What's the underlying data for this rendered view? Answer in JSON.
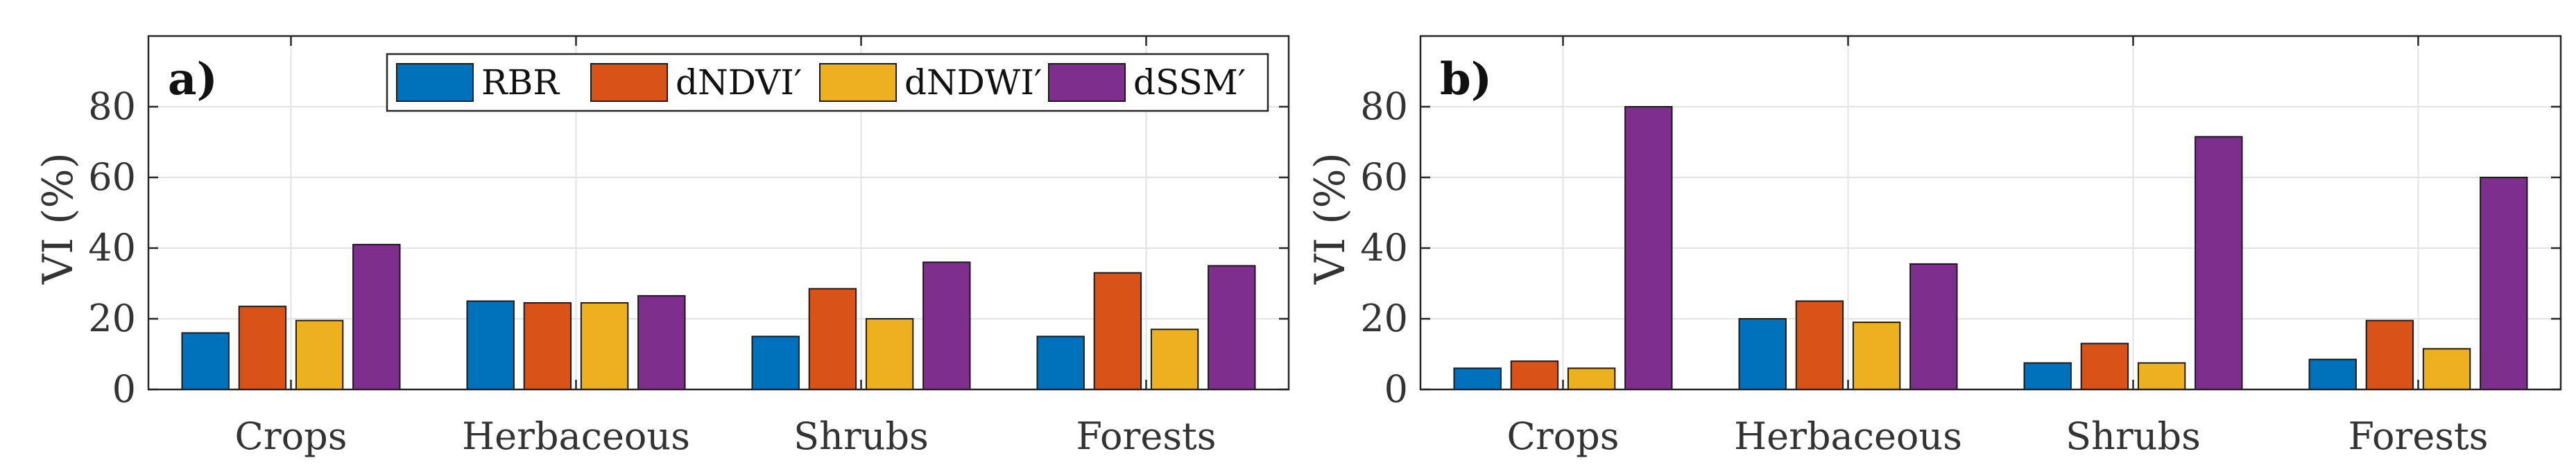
{
  "chart_data": [
    {
      "type": "bar",
      "panel_label": "a)",
      "ylabel": "VI (%)",
      "ylim": [
        0,
        100
      ],
      "yticks": [
        "0",
        "20",
        "40",
        "60",
        "80"
      ],
      "categories": [
        "Crops",
        "Herbaceous",
        "Shrubs",
        "Forests"
      ],
      "grid": true,
      "legend_position": "top-right",
      "series": [
        {
          "name": "RBR",
          "color": "#0072BD",
          "values": [
            16,
            25,
            15,
            15
          ]
        },
        {
          "name": "dNDVI′",
          "color": "#D95319",
          "values": [
            23.5,
            24.5,
            28.5,
            33
          ]
        },
        {
          "name": "dNDWI′",
          "color": "#EDB120",
          "values": [
            19.5,
            24.5,
            20,
            17
          ]
        },
        {
          "name": "dSSM′",
          "color": "#7E2F8E",
          "values": [
            41,
            26.5,
            36,
            35
          ]
        }
      ]
    },
    {
      "type": "bar",
      "panel_label": "b)",
      "ylabel": "VI (%)",
      "ylim": [
        0,
        100
      ],
      "yticks": [
        "0",
        "20",
        "40",
        "60",
        "80"
      ],
      "categories": [
        "Crops",
        "Herbaceous",
        "Shrubs",
        "Forests"
      ],
      "grid": true,
      "series": [
        {
          "name": "RBR",
          "color": "#0072BD",
          "values": [
            6,
            20,
            7.5,
            8.5
          ]
        },
        {
          "name": "dNDVI′",
          "color": "#D95319",
          "values": [
            8,
            25,
            13,
            19.5
          ]
        },
        {
          "name": "dNDWI′",
          "color": "#EDB120",
          "values": [
            6,
            19,
            7.5,
            11.5
          ]
        },
        {
          "name": "dSSM′",
          "color": "#7E2F8E",
          "values": [
            80,
            35.5,
            71.5,
            60
          ]
        }
      ]
    }
  ]
}
